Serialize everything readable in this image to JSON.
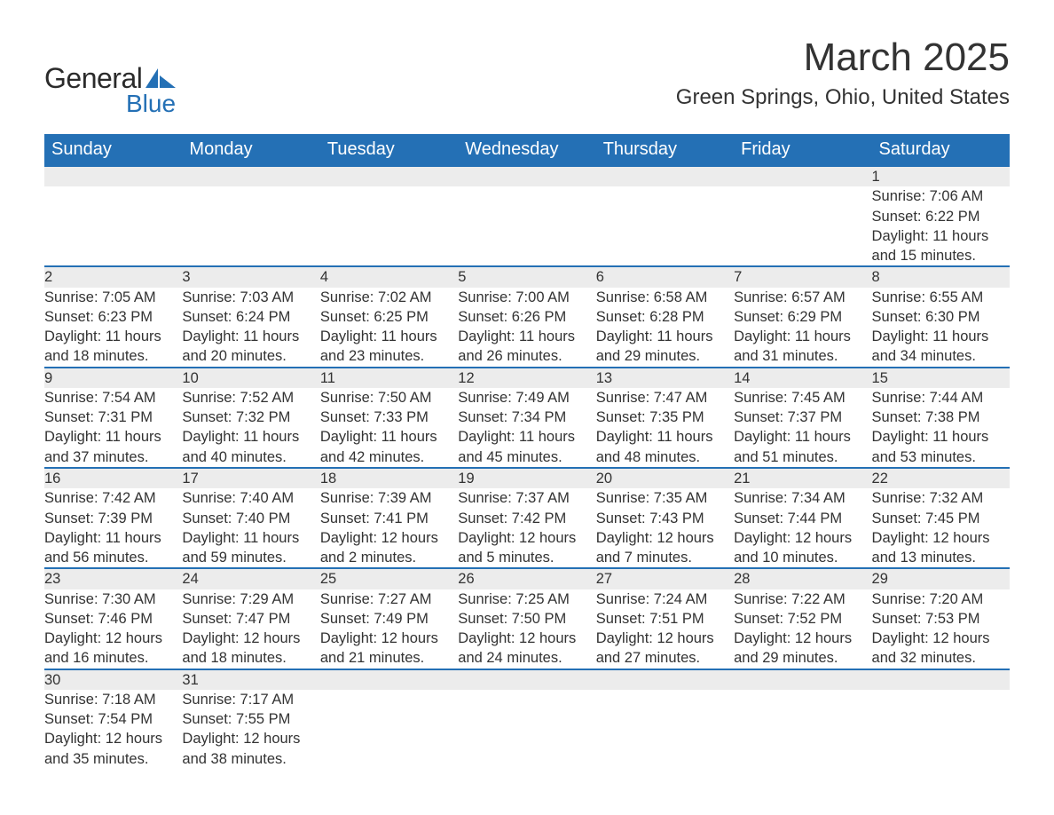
{
  "logo": {
    "general": "General",
    "blue": "Blue",
    "shape_color": "#2470b5"
  },
  "title": "March 2025",
  "location": "Green Springs, Ohio, United States",
  "day_headers": [
    "Sunday",
    "Monday",
    "Tuesday",
    "Wednesday",
    "Thursday",
    "Friday",
    "Saturday"
  ],
  "colors": {
    "header_bg": "#2470b5",
    "header_fg": "#ffffff",
    "daynum_bg": "#ececec",
    "daynum_border": "#2470b5",
    "text": "#333333",
    "bg": "#ffffff"
  },
  "typography": {
    "title_fontsize": 44,
    "location_fontsize": 24,
    "header_fontsize": 20,
    "body_fontsize": 16.5
  },
  "layout": {
    "columns": 7,
    "first_weekday_index": 6
  },
  "days": [
    {
      "n": 1,
      "sunrise": "7:06 AM",
      "sunset": "6:22 PM",
      "daylight": "11 hours and 15 minutes."
    },
    {
      "n": 2,
      "sunrise": "7:05 AM",
      "sunset": "6:23 PM",
      "daylight": "11 hours and 18 minutes."
    },
    {
      "n": 3,
      "sunrise": "7:03 AM",
      "sunset": "6:24 PM",
      "daylight": "11 hours and 20 minutes."
    },
    {
      "n": 4,
      "sunrise": "7:02 AM",
      "sunset": "6:25 PM",
      "daylight": "11 hours and 23 minutes."
    },
    {
      "n": 5,
      "sunrise": "7:00 AM",
      "sunset": "6:26 PM",
      "daylight": "11 hours and 26 minutes."
    },
    {
      "n": 6,
      "sunrise": "6:58 AM",
      "sunset": "6:28 PM",
      "daylight": "11 hours and 29 minutes."
    },
    {
      "n": 7,
      "sunrise": "6:57 AM",
      "sunset": "6:29 PM",
      "daylight": "11 hours and 31 minutes."
    },
    {
      "n": 8,
      "sunrise": "6:55 AM",
      "sunset": "6:30 PM",
      "daylight": "11 hours and 34 minutes."
    },
    {
      "n": 9,
      "sunrise": "7:54 AM",
      "sunset": "7:31 PM",
      "daylight": "11 hours and 37 minutes."
    },
    {
      "n": 10,
      "sunrise": "7:52 AM",
      "sunset": "7:32 PM",
      "daylight": "11 hours and 40 minutes."
    },
    {
      "n": 11,
      "sunrise": "7:50 AM",
      "sunset": "7:33 PM",
      "daylight": "11 hours and 42 minutes."
    },
    {
      "n": 12,
      "sunrise": "7:49 AM",
      "sunset": "7:34 PM",
      "daylight": "11 hours and 45 minutes."
    },
    {
      "n": 13,
      "sunrise": "7:47 AM",
      "sunset": "7:35 PM",
      "daylight": "11 hours and 48 minutes."
    },
    {
      "n": 14,
      "sunrise": "7:45 AM",
      "sunset": "7:37 PM",
      "daylight": "11 hours and 51 minutes."
    },
    {
      "n": 15,
      "sunrise": "7:44 AM",
      "sunset": "7:38 PM",
      "daylight": "11 hours and 53 minutes."
    },
    {
      "n": 16,
      "sunrise": "7:42 AM",
      "sunset": "7:39 PM",
      "daylight": "11 hours and 56 minutes."
    },
    {
      "n": 17,
      "sunrise": "7:40 AM",
      "sunset": "7:40 PM",
      "daylight": "11 hours and 59 minutes."
    },
    {
      "n": 18,
      "sunrise": "7:39 AM",
      "sunset": "7:41 PM",
      "daylight": "12 hours and 2 minutes."
    },
    {
      "n": 19,
      "sunrise": "7:37 AM",
      "sunset": "7:42 PM",
      "daylight": "12 hours and 5 minutes."
    },
    {
      "n": 20,
      "sunrise": "7:35 AM",
      "sunset": "7:43 PM",
      "daylight": "12 hours and 7 minutes."
    },
    {
      "n": 21,
      "sunrise": "7:34 AM",
      "sunset": "7:44 PM",
      "daylight": "12 hours and 10 minutes."
    },
    {
      "n": 22,
      "sunrise": "7:32 AM",
      "sunset": "7:45 PM",
      "daylight": "12 hours and 13 minutes."
    },
    {
      "n": 23,
      "sunrise": "7:30 AM",
      "sunset": "7:46 PM",
      "daylight": "12 hours and 16 minutes."
    },
    {
      "n": 24,
      "sunrise": "7:29 AM",
      "sunset": "7:47 PM",
      "daylight": "12 hours and 18 minutes."
    },
    {
      "n": 25,
      "sunrise": "7:27 AM",
      "sunset": "7:49 PM",
      "daylight": "12 hours and 21 minutes."
    },
    {
      "n": 26,
      "sunrise": "7:25 AM",
      "sunset": "7:50 PM",
      "daylight": "12 hours and 24 minutes."
    },
    {
      "n": 27,
      "sunrise": "7:24 AM",
      "sunset": "7:51 PM",
      "daylight": "12 hours and 27 minutes."
    },
    {
      "n": 28,
      "sunrise": "7:22 AM",
      "sunset": "7:52 PM",
      "daylight": "12 hours and 29 minutes."
    },
    {
      "n": 29,
      "sunrise": "7:20 AM",
      "sunset": "7:53 PM",
      "daylight": "12 hours and 32 minutes."
    },
    {
      "n": 30,
      "sunrise": "7:18 AM",
      "sunset": "7:54 PM",
      "daylight": "12 hours and 35 minutes."
    },
    {
      "n": 31,
      "sunrise": "7:17 AM",
      "sunset": "7:55 PM",
      "daylight": "12 hours and 38 minutes."
    }
  ],
  "labels": {
    "sunrise": "Sunrise: ",
    "sunset": "Sunset: ",
    "daylight": "Daylight: "
  }
}
